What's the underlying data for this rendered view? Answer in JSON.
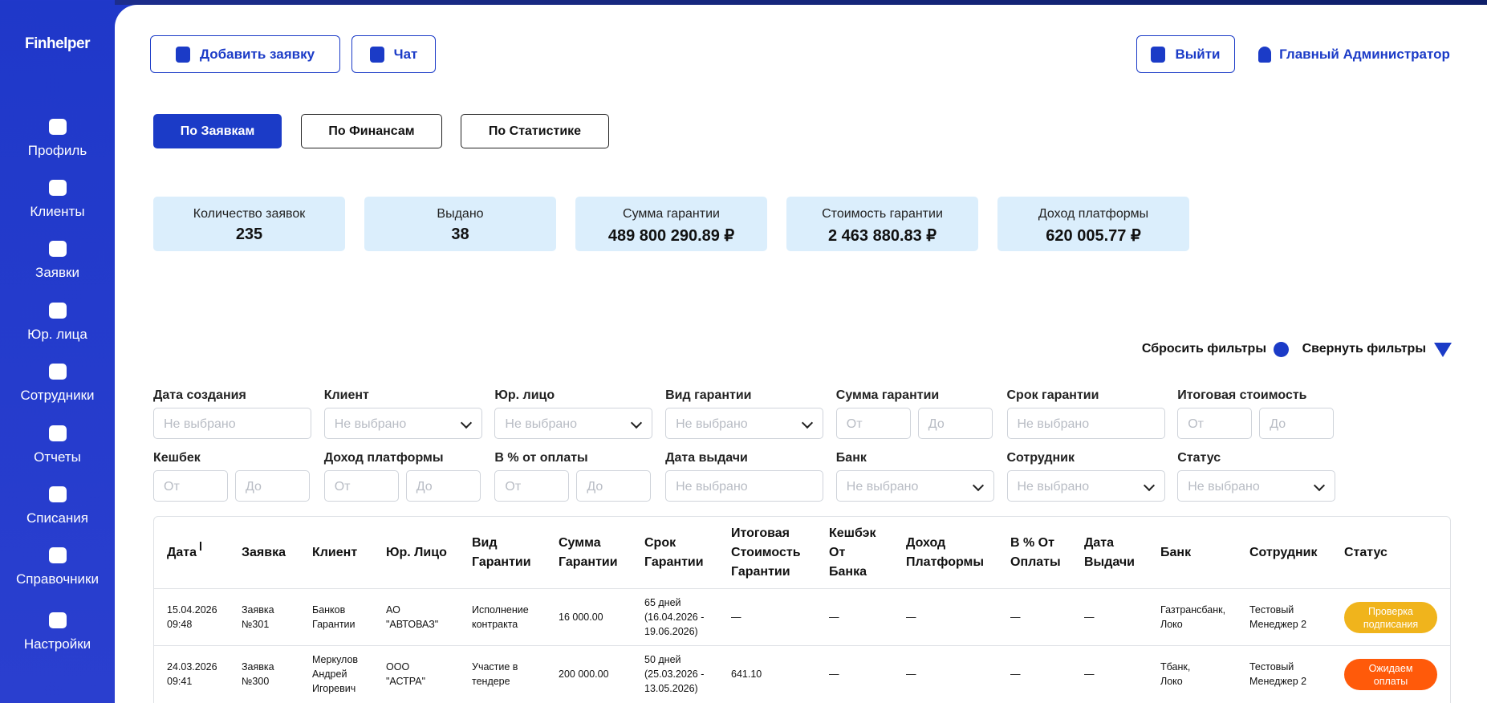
{
  "logo": "Finhelper",
  "sidebar": [
    "Профиль",
    "Клиенты",
    "Заявки",
    "Юр. лица",
    "Сотрудники",
    "Отчеты",
    "Списания",
    "Справочники",
    "Настройки"
  ],
  "header": {
    "add_request": "Добавить заявку",
    "chat": "Чат",
    "logout": "Выйти",
    "user": "Главный Администратор"
  },
  "tabs": [
    "По Заявкам",
    "По Финансам",
    "По Статистике"
  ],
  "stats": [
    {
      "label": "Количество заявок",
      "value": "235"
    },
    {
      "label": "Выдано",
      "value": "38"
    },
    {
      "label": "Сумма гарантии",
      "value": "489 800 290.89 ₽"
    },
    {
      "label": "Стоимость гарантии",
      "value": "2 463 880.83 ₽"
    },
    {
      "label": "Доход платформы",
      "value": "620 005.77 ₽"
    }
  ],
  "filter_actions": {
    "reset": "Сбросить фильтры",
    "collapse": "Свернуть фильтры"
  },
  "filters": [
    {
      "label": "Дата создания",
      "placeholder": "Не выбрано"
    },
    {
      "label": "Клиент",
      "placeholder": "Не выбрано",
      "dropdown": true
    },
    {
      "label": "Юр. лицо",
      "placeholder": "Не выбрано",
      "dropdown": true
    },
    {
      "label": "Вид гарантии",
      "placeholder": "Не выбрано",
      "dropdown": true
    },
    {
      "label": "Сумма гарантии",
      "range": [
        "От",
        "До"
      ]
    },
    {
      "label": "Срок гарантии",
      "placeholder": "Не выбрано"
    },
    {
      "label": "Итоговая стоимость",
      "range": [
        "От",
        "До"
      ]
    },
    {
      "label": "Кешбек",
      "range": [
        "От",
        "До"
      ]
    },
    {
      "label": "Доход платформы",
      "range": [
        "От",
        "До"
      ]
    },
    {
      "label": "В % от оплаты",
      "range": [
        "От",
        "До"
      ]
    },
    {
      "label": "Дата выдачи",
      "placeholder": "Не выбрано"
    },
    {
      "label": "Банк",
      "placeholder": "Не выбрано",
      "dropdown": true
    },
    {
      "label": "Сотрудник",
      "placeholder": "Не выбрано",
      "dropdown": true
    },
    {
      "label": "Статус",
      "placeholder": "Не выбрано",
      "dropdown": true
    }
  ],
  "table": {
    "columns": [
      "Дата",
      "Заявка",
      "Клиент",
      "Юр. Лицо",
      "Вид\nГарантии",
      "Сумма\nГарантии",
      "Срок\nГарантии",
      "Итоговая\nСтоимость\nГарантии",
      "Кешбэк\nОт\nБанка",
      "Доход\nПлатформы",
      "В % От\nОплаты",
      "Дата\nВыдачи",
      "Банк",
      "Сотрудник",
      "Статус"
    ],
    "rows": [
      {
        "cells": [
          "15.04.2026\n09:48",
          "Заявка\n№301",
          "Банков\nГарантии",
          "АО\n\"АВТОВАЗ\"",
          "Исполнение\nконтракта",
          "16 000.00",
          "65 дней\n(16.04.2026 -\n19.06.2026)",
          "—",
          "—",
          "—",
          "—",
          "—",
          "Газтрансбанк,\nЛоко",
          "Тестовый\nМенеджер 2"
        ],
        "status": {
          "text": "Проверка\nподписания",
          "color": "#f0b41c"
        }
      },
      {
        "cells": [
          "24.03.2026\n09:41",
          "Заявка\n№300",
          "Меркулов\nАндрей\nИгоревич",
          "ООО\n\"АСТРА\"",
          "Участие в\nтендере",
          "200 000.00",
          "50 дней\n(25.03.2026 -\n13.05.2026)",
          "641.10",
          "—",
          "—",
          "—",
          "—",
          "Тбанк,\nЛоко",
          "Тестовый\nМенеджер 2"
        ],
        "status": {
          "text": "Ожидаем\nоплаты",
          "color": "#ff5a0a"
        }
      }
    ]
  }
}
